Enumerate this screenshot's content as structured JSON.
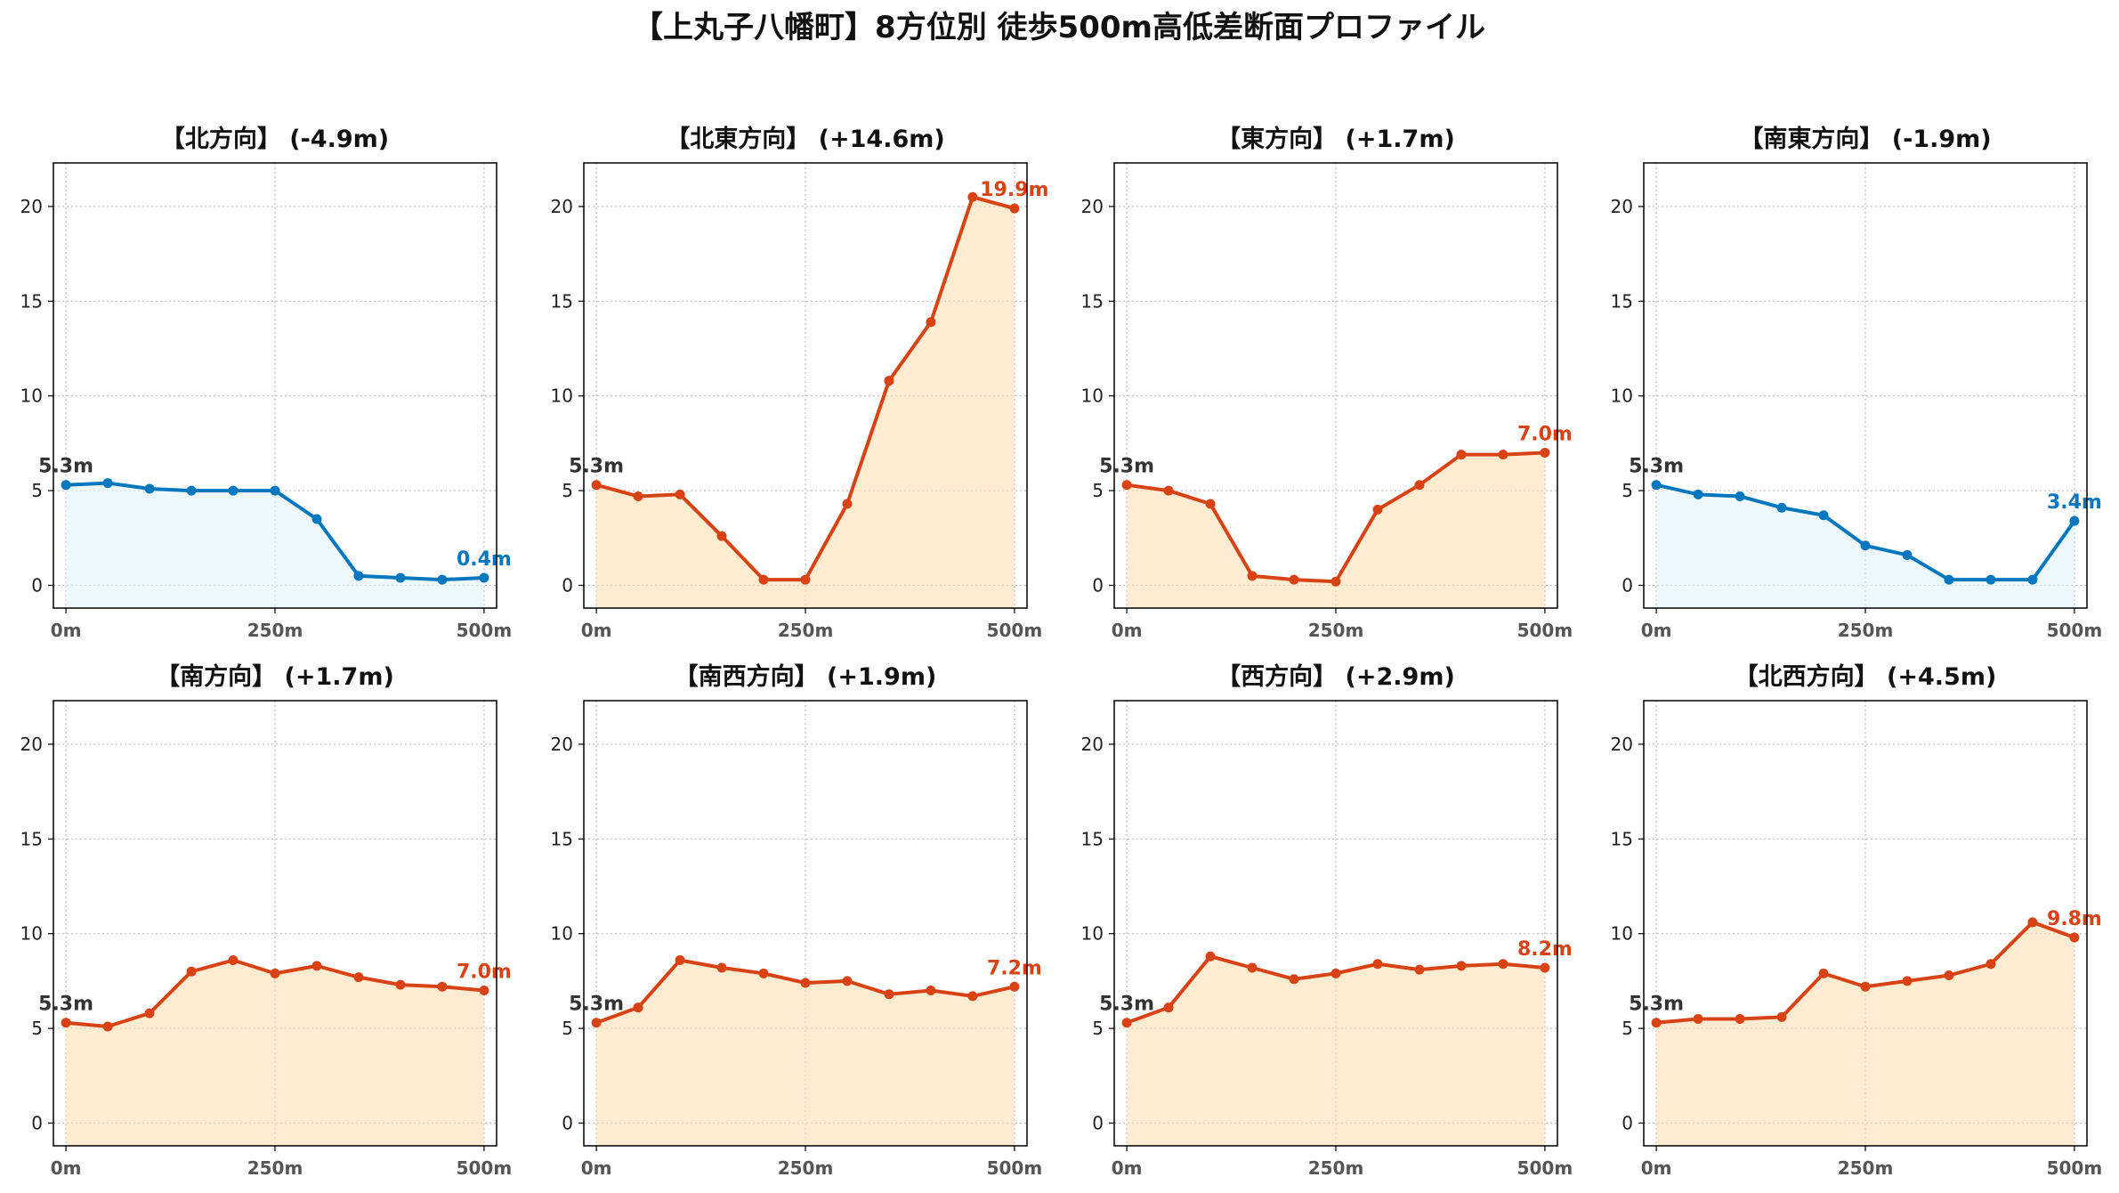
{
  "figure_title": "【上丸子八幡町】8方位別 徒歩500m高低差断面プロファイル",
  "colors": {
    "up": "#d84315",
    "down": "#0277bd",
    "up_fill": "#ffe0b2",
    "down_fill": "#e1f5fe",
    "grid": "#bbbbbb",
    "axis": "#000000"
  },
  "chart_data": [
    {
      "type": "area",
      "title": "【北方向】 (-4.9m)",
      "trend": "down",
      "x": [
        0,
        50,
        100,
        150,
        200,
        250,
        300,
        350,
        400,
        450,
        500
      ],
      "y": [
        5.3,
        5.4,
        5.1,
        5.0,
        5.0,
        5.0,
        3.5,
        0.5,
        0.4,
        0.3,
        0.4
      ],
      "start_label": "5.3m",
      "end_label": "0.4m"
    },
    {
      "type": "area",
      "title": "【北東方向】 (+14.6m)",
      "trend": "up",
      "x": [
        0,
        50,
        100,
        150,
        200,
        250,
        300,
        350,
        400,
        450,
        500
      ],
      "y": [
        5.3,
        4.7,
        4.8,
        2.6,
        0.3,
        0.3,
        4.3,
        10.8,
        13.9,
        20.5,
        19.9
      ],
      "start_label": "5.3m",
      "end_label": "19.9m"
    },
    {
      "type": "area",
      "title": "【東方向】 (+1.7m)",
      "trend": "up",
      "x": [
        0,
        50,
        100,
        150,
        200,
        250,
        300,
        350,
        400,
        450,
        500
      ],
      "y": [
        5.3,
        5.0,
        4.3,
        0.5,
        0.3,
        0.2,
        4.0,
        5.3,
        6.9,
        6.9,
        7.0
      ],
      "start_label": "5.3m",
      "end_label": "7.0m"
    },
    {
      "type": "area",
      "title": "【南東方向】 (-1.9m)",
      "trend": "down",
      "x": [
        0,
        50,
        100,
        150,
        200,
        250,
        300,
        350,
        400,
        450,
        500
      ],
      "y": [
        5.3,
        4.8,
        4.7,
        4.1,
        3.7,
        2.1,
        1.6,
        0.3,
        0.3,
        0.3,
        3.4
      ],
      "start_label": "5.3m",
      "end_label": "3.4m"
    },
    {
      "type": "area",
      "title": "【南方向】 (+1.7m)",
      "trend": "up",
      "x": [
        0,
        50,
        100,
        150,
        200,
        250,
        300,
        350,
        400,
        450,
        500
      ],
      "y": [
        5.3,
        5.1,
        5.8,
        8.0,
        8.6,
        7.9,
        8.3,
        7.7,
        7.3,
        7.2,
        7.0
      ],
      "start_label": "5.3m",
      "end_label": "7.0m"
    },
    {
      "type": "area",
      "title": "【南西方向】 (+1.9m)",
      "trend": "up",
      "x": [
        0,
        50,
        100,
        150,
        200,
        250,
        300,
        350,
        400,
        450,
        500
      ],
      "y": [
        5.3,
        6.1,
        8.6,
        8.2,
        7.9,
        7.4,
        7.5,
        6.8,
        7.0,
        6.7,
        7.2
      ],
      "start_label": "5.3m",
      "end_label": "7.2m"
    },
    {
      "type": "area",
      "title": "【西方向】 (+2.9m)",
      "trend": "up",
      "x": [
        0,
        50,
        100,
        150,
        200,
        250,
        300,
        350,
        400,
        450,
        500
      ],
      "y": [
        5.3,
        6.1,
        8.8,
        8.2,
        7.6,
        7.9,
        8.4,
        8.1,
        8.3,
        8.4,
        8.2
      ],
      "start_label": "5.3m",
      "end_label": "8.2m"
    },
    {
      "type": "area",
      "title": "【北西方向】 (+4.5m)",
      "trend": "up",
      "x": [
        0,
        50,
        100,
        150,
        200,
        250,
        300,
        350,
        400,
        450,
        500
      ],
      "y": [
        5.3,
        5.5,
        5.5,
        5.6,
        7.9,
        7.2,
        7.5,
        7.8,
        8.4,
        10.6,
        9.8
      ],
      "start_label": "5.3m",
      "end_label": "9.8m"
    }
  ],
  "axes": {
    "xlim": [
      -15,
      515
    ],
    "ylim": [
      -1.2,
      22.3
    ],
    "xticks": [
      0,
      250,
      500
    ],
    "xtick_labels": [
      "0m",
      "250m",
      "500m"
    ],
    "yticks": [
      0,
      5,
      10,
      15,
      20
    ],
    "ytick_labels": [
      "0",
      "5",
      "10",
      "15",
      "20"
    ],
    "grid": true
  }
}
